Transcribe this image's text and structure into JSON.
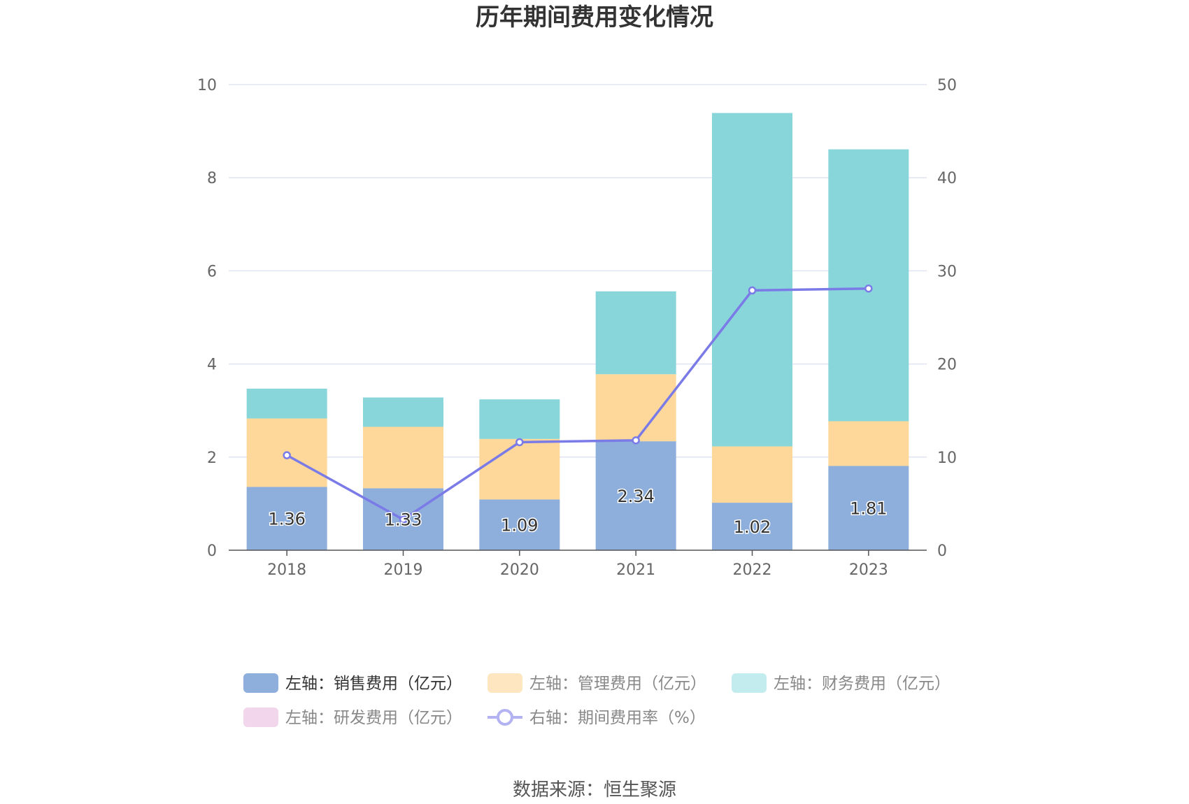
{
  "title": "历年期间费用变化情况",
  "source": "数据来源：恒生聚源",
  "chart_data": {
    "type": "bar",
    "stacked": true,
    "categories": [
      "2018",
      "2019",
      "2020",
      "2021",
      "2022",
      "2023"
    ],
    "y_left": {
      "min": 0,
      "max": 10,
      "ticks": [
        0,
        2,
        4,
        6,
        8,
        10
      ]
    },
    "y_right": {
      "min": 0,
      "max": 50,
      "ticks": [
        0,
        10,
        20,
        30,
        40,
        50
      ]
    },
    "grid": true,
    "legend_position": "bottom",
    "series": [
      {
        "name": "左轴：销售费用（亿元）",
        "axis": "left",
        "type": "bar",
        "color": "#8eaedb",
        "values": [
          1.36,
          1.33,
          1.09,
          2.34,
          1.02,
          1.81
        ],
        "labels": [
          "1.36",
          "1.33",
          "1.09",
          "2.34",
          "1.02",
          "1.81"
        ]
      },
      {
        "name": "左轴：管理费用（亿元）",
        "axis": "left",
        "type": "bar",
        "color": "#fdd89a",
        "values": [
          1.47,
          1.32,
          1.3,
          1.44,
          1.21,
          0.96
        ]
      },
      {
        "name": "左轴：财务费用（亿元）",
        "axis": "left",
        "type": "bar",
        "color": "#88d6da",
        "values": [
          0.64,
          0.63,
          0.85,
          1.78,
          7.16,
          5.84
        ]
      },
      {
        "name": "左轴：研发费用（亿元）",
        "axis": "left",
        "type": "bar",
        "color": "#f2d7ec",
        "values": [
          0,
          0,
          0,
          0,
          0,
          0
        ]
      },
      {
        "name": "右轴：期间费用率（%）",
        "axis": "right",
        "type": "line",
        "color": "#7b7be8",
        "values": [
          10.2,
          3.3,
          11.6,
          11.8,
          27.9,
          28.1
        ]
      }
    ]
  }
}
